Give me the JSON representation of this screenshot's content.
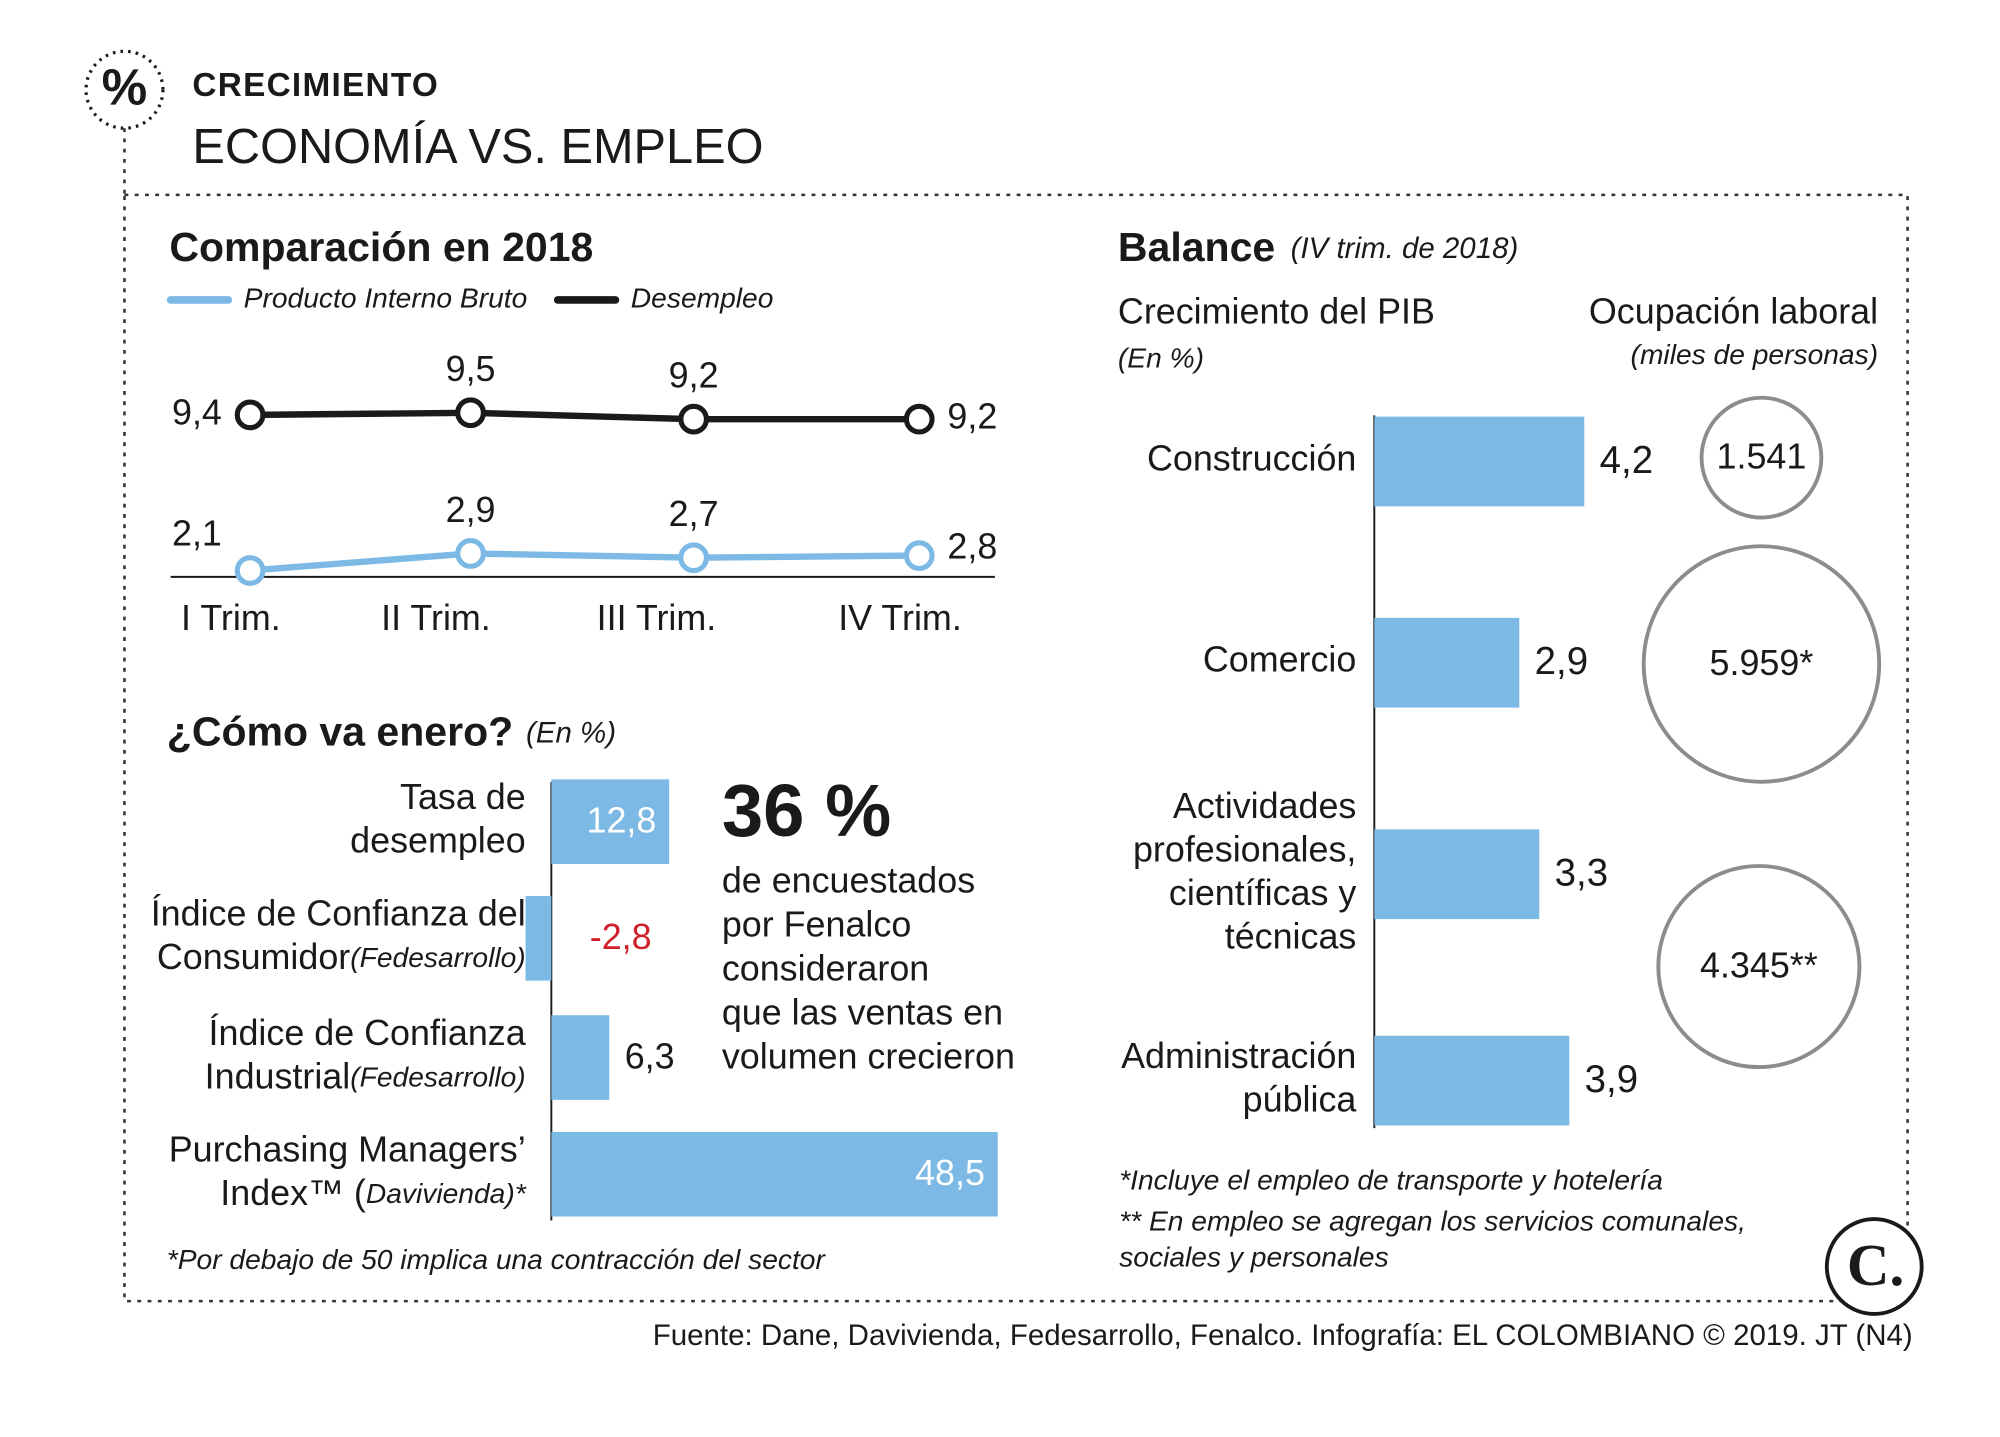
{
  "header": {
    "icon": "%",
    "kicker": "CRECIMIENTO",
    "title": "ECONOMÍA VS. EMPLEO"
  },
  "chart_data": [
    {
      "type": "line",
      "title": "Comparación en 2018",
      "categories": [
        "I Trim.",
        "II Trim.",
        "III Trim.",
        "IV Trim."
      ],
      "series": [
        {
          "name": "Producto Interno Bruto",
          "color": "#7cb9e5",
          "values": [
            2.1,
            2.9,
            2.7,
            2.8
          ],
          "value_labels": [
            "2,1",
            "2,9",
            "2,7",
            "2,8"
          ]
        },
        {
          "name": "Desempleo",
          "color": "#1a1a1a",
          "values": [
            9.4,
            9.5,
            9.2,
            9.2
          ],
          "value_labels": [
            "9,4",
            "9,5",
            "9,2",
            "9,2"
          ]
        }
      ],
      "ylim": [
        2,
        10
      ]
    },
    {
      "type": "hbar",
      "title": "¿Cómo va enero?",
      "subtitle": "(En %)",
      "categories": [
        {
          "lines": [
            "Tasa de",
            "desempleo"
          ]
        },
        {
          "lines": [
            "Índice de Confianza del",
            "Consumidor"
          ],
          "note": "(Fedesarrollo)"
        },
        {
          "lines": [
            "Índice de Confianza",
            "Industrial"
          ],
          "note": "(Fedesarrollo)"
        },
        {
          "lines": [
            "Purchasing Managers’",
            "Index™ ("
          ],
          "note": "Davivienda)*"
        }
      ],
      "values": [
        12.8,
        -2.8,
        6.3,
        48.5
      ],
      "value_labels": [
        "12,8",
        "-2,8",
        "6,3",
        "48,5"
      ],
      "color": "#7cb9e5",
      "negative_label_color": "#d0202a",
      "xlim": [
        0,
        50
      ],
      "note": "*Por debajo de 50 implica una contracción del sector"
    },
    {
      "type": "hbar",
      "title": "Balance",
      "subtitle": "(IV trim. de 2018)",
      "axis_title": "Crecimiento del PIB",
      "axis_note": "(En %)",
      "categories": [
        {
          "lines": [
            "Construcción"
          ]
        },
        {
          "lines": [
            "Comercio"
          ]
        },
        {
          "lines": [
            "Actividades",
            "profesionales,",
            "científicas y",
            "técnicas"
          ]
        },
        {
          "lines": [
            "Administración",
            "pública"
          ]
        }
      ],
      "values": [
        4.2,
        2.9,
        3.3,
        3.9
      ],
      "value_labels": [
        "4,2",
        "2,9",
        "3,3",
        "3,9"
      ],
      "color": "#7cb9e5",
      "xlim": [
        0,
        5
      ]
    },
    {
      "type": "bubble",
      "title": "Ocupación laboral",
      "subtitle": "(miles de personas)",
      "values": [
        1541,
        5959,
        4345
      ],
      "value_labels": [
        "1.541",
        "5.959*",
        "4.345**"
      ],
      "color": "#8c8c8c"
    }
  ],
  "callout": {
    "value": "36 %",
    "lines": [
      "de encuestados",
      "por Fenalco",
      "consideraron",
      "que las ventas en",
      "volumen crecieron"
    ]
  },
  "notes": [
    [
      "*Incluye el empleo de transporte y hotelería"
    ],
    [
      "** En empleo se agregan los servicios comunales,",
      "sociales y personales"
    ]
  ],
  "source": "Fuente: Dane, Davivienda, Fedesarrollo, Fenalco. Infografía: EL COLOMBIANO © 2019. JT (N4)",
  "logo": "C."
}
